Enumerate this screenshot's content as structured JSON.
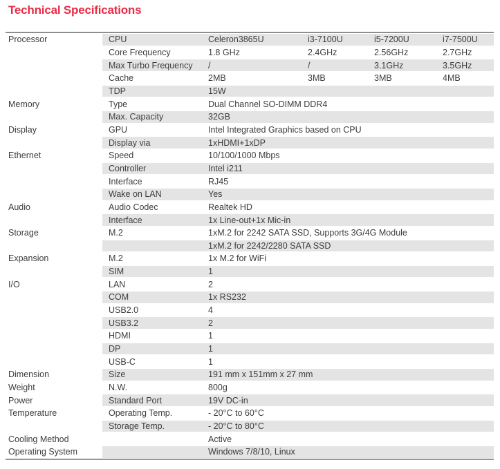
{
  "title": "Technical Specifications",
  "colors": {
    "title_red": "#ea2b45",
    "row_shade": "#e4e4e4",
    "table_border": "#8d8d8d",
    "text": "#3d3d3d"
  },
  "table": {
    "rows": [
      {
        "category": "Processor",
        "label": "CPU",
        "values": [
          "Celeron3865U",
          "i3-7100U",
          "i5-7200U",
          "i7-7500U"
        ]
      },
      {
        "category": "",
        "label": "Core Frequency",
        "values": [
          "1.8 GHz",
          "2.4GHz",
          "2.56GHz",
          "2.7GHz"
        ]
      },
      {
        "category": "",
        "label": "Max Turbo Frequency",
        "values": [
          "/",
          "/",
          "3.1GHz",
          "3.5GHz"
        ]
      },
      {
        "category": "",
        "label": "Cache",
        "values": [
          "2MB",
          "3MB",
          "3MB",
          "4MB"
        ]
      },
      {
        "category": "",
        "label": "TDP",
        "values": [
          "15W"
        ]
      },
      {
        "category": "Memory",
        "label": "Type",
        "values": [
          "Dual Channel SO-DIMM DDR4"
        ]
      },
      {
        "category": "",
        "label": "Max. Capacity",
        "values": [
          "32GB"
        ]
      },
      {
        "category": "Display",
        "label": "GPU",
        "values": [
          "Intel Integrated Graphics based on CPU"
        ]
      },
      {
        "category": "",
        "label": "Display via",
        "values": [
          "1xHDMI+1xDP"
        ]
      },
      {
        "category": "Ethernet",
        "label": "Speed",
        "values": [
          "10/100/1000 Mbps"
        ]
      },
      {
        "category": "",
        "label": "Controller",
        "values": [
          "Intel i211"
        ]
      },
      {
        "category": "",
        "label": "Interface",
        "values": [
          "RJ45"
        ]
      },
      {
        "category": "",
        "label": "Wake on LAN",
        "values": [
          "Yes"
        ]
      },
      {
        "category": "Audio",
        "label": "Audio Codec",
        "values": [
          "Realtek HD"
        ]
      },
      {
        "category": "",
        "label": "Interface",
        "values": [
          "1x Line-out+1x Mic-in"
        ]
      },
      {
        "category": "Storage",
        "label": "M.2",
        "values": [
          "1xM.2 for 2242 SATA SSD, Supports 3G/4G Module"
        ]
      },
      {
        "category": "",
        "label": "",
        "values": [
          "1xM.2 for 2242/2280 SATA SSD"
        ]
      },
      {
        "category": "Expansion",
        "label": "M.2",
        "values": [
          "1x M.2 for WiFi"
        ]
      },
      {
        "category": "",
        "label": "SIM",
        "values": [
          "1"
        ]
      },
      {
        "category": "I/O",
        "label": "LAN",
        "values": [
          "2"
        ]
      },
      {
        "category": "",
        "label": "COM",
        "values": [
          "1x RS232"
        ]
      },
      {
        "category": "",
        "label": "USB2.0",
        "values": [
          "4"
        ]
      },
      {
        "category": "",
        "label": "USB3.2",
        "values": [
          "2"
        ]
      },
      {
        "category": "",
        "label": "HDMI",
        "values": [
          "1"
        ]
      },
      {
        "category": "",
        "label": "DP",
        "values": [
          "1"
        ]
      },
      {
        "category": "",
        "label": "USB-C",
        "values": [
          "1"
        ]
      },
      {
        "category": "Dimension",
        "label": "Size",
        "values": [
          "191 mm x 151mm x 27 mm"
        ]
      },
      {
        "category": "Weight",
        "label": "N.W.",
        "values": [
          "800g"
        ]
      },
      {
        "category": "Power",
        "label": "Standard Port",
        "values": [
          "19V DC-in"
        ]
      },
      {
        "category": "Temperature",
        "label": "Operating Temp.",
        "values": [
          "- 20°C to 60°C"
        ]
      },
      {
        "category": "",
        "label": "Storage Temp.",
        "values": [
          "- 20°C to 80°C"
        ]
      },
      {
        "category": "Cooling Method",
        "label": "",
        "values": [
          "Active"
        ]
      },
      {
        "category": "Operating System",
        "label": "",
        "values": [
          "Windows 7/8/10, Linux"
        ]
      }
    ]
  }
}
